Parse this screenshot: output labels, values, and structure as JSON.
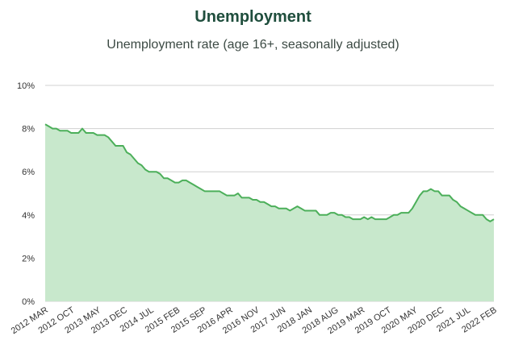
{
  "chart_data": {
    "type": "area",
    "title": "Unemployment",
    "subtitle": "Unemployment rate (age 16+, seasonally adjusted)",
    "xlabel": "",
    "ylabel": "",
    "ylim": [
      0,
      10
    ],
    "yticks": [
      "0%",
      "2%",
      "4%",
      "6%",
      "8%",
      "10%"
    ],
    "ytick_values": [
      0,
      2,
      4,
      6,
      8,
      10
    ],
    "xtick_labels": [
      "2012 MAR",
      "2012 OCT",
      "2013 MAY",
      "2013 DEC",
      "2014 JUL",
      "2015 FEB",
      "2015 SEP",
      "2016 APR",
      "2016 NOV",
      "2017 JUN",
      "2018 JAN",
      "2018 AUG",
      "2019 MAR",
      "2019 OCT",
      "2020 MAY",
      "2020 DEC",
      "2021 JUL",
      "2022 FEB"
    ],
    "grid": true,
    "colors": {
      "line": "#4caf5a",
      "fill": "#c8e8cc",
      "grid": "#d0d0d0"
    },
    "series": [
      {
        "values": [
          8.2,
          8.1,
          8.0,
          8.0,
          7.9,
          7.9,
          7.9,
          7.8,
          7.8,
          7.8,
          8.0,
          7.8,
          7.8,
          7.8,
          7.7,
          7.7,
          7.7,
          7.6,
          7.4,
          7.2,
          7.2,
          7.2,
          6.9,
          6.8,
          6.6,
          6.4,
          6.3,
          6.1,
          6.0,
          6.0,
          6.0,
          5.9,
          5.7,
          5.7,
          5.6,
          5.5,
          5.5,
          5.6,
          5.6,
          5.5,
          5.4,
          5.3,
          5.2,
          5.1,
          5.1,
          5.1,
          5.1,
          5.1,
          5.0,
          4.9,
          4.9,
          4.9,
          5.0,
          4.8,
          4.8,
          4.8,
          4.7,
          4.7,
          4.6,
          4.6,
          4.5,
          4.4,
          4.4,
          4.3,
          4.3,
          4.3,
          4.2,
          4.3,
          4.4,
          4.3,
          4.2,
          4.2,
          4.2,
          4.2,
          4.0,
          4.0,
          4.0,
          4.1,
          4.1,
          4.0,
          4.0,
          3.9,
          3.9,
          3.8,
          3.8,
          3.8,
          3.9,
          3.8,
          3.9,
          3.8,
          3.8,
          3.8,
          3.8,
          3.9,
          4.0,
          4.0,
          4.1,
          4.1,
          4.1,
          4.3,
          4.6,
          4.9,
          5.1,
          5.1,
          5.2,
          5.1,
          5.1,
          4.9,
          4.9,
          4.9,
          4.7,
          4.6,
          4.4,
          4.3,
          4.2,
          4.1,
          4.0,
          4.0,
          4.0,
          3.8,
          3.7,
          3.8
        ]
      }
    ]
  }
}
